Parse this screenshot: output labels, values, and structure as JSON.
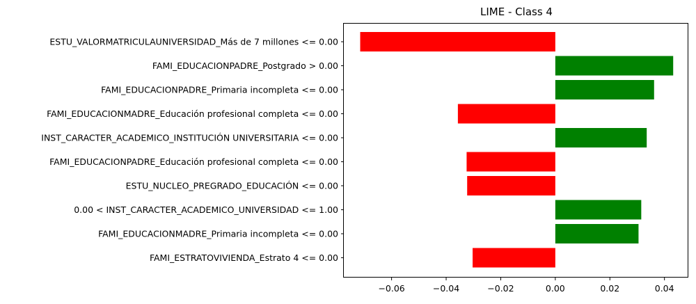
{
  "chart_data": {
    "type": "bar",
    "orientation": "horizontal",
    "title": "LIME - Class 4",
    "xlabel": "",
    "ylabel": "",
    "categories": [
      "ESTU_VALORMATRICULAUNIVERSIDAD_Más de 7 millones <= 0.00",
      "FAMI_EDUCACIONPADRE_Postgrado > 0.00",
      "FAMI_EDUCACIONPADRE_Primaria incompleta <= 0.00",
      "FAMI_EDUCACIONMADRE_Educación profesional completa <= 0.00",
      "INST_CARACTER_ACADEMICO_INSTITUCIÓN UNIVERSITARIA <= 0.00",
      "FAMI_EDUCACIONPADRE_Educación profesional completa <= 0.00",
      "ESTU_NUCLEO_PREGRADO_EDUCACIÓN <= 0.00",
      "0.00 < INST_CARACTER_ACADEMICO_UNIVERSIDAD <= 1.00",
      "FAMI_EDUCACIONMADRE_Primaria incompleta <= 0.00",
      "FAMI_ESTRATOVIVIENDA_Estrato 4 <= 0.00"
    ],
    "values": [
      -0.0715,
      0.0432,
      0.0362,
      -0.0357,
      0.0335,
      -0.0325,
      -0.0323,
      0.0315,
      0.0305,
      -0.0303
    ],
    "xlim": [
      -0.0775,
      0.0485
    ],
    "xticks": [
      -0.06,
      -0.04,
      -0.02,
      0.0,
      0.02,
      0.04
    ],
    "xtick_labels": [
      "−0.06",
      "−0.04",
      "−0.02",
      "0.00",
      "0.02",
      "0.04"
    ],
    "colors": {
      "positive": "#008000",
      "negative": "#ff0000",
      "axis": "#000000"
    },
    "grid": false,
    "legend": "none"
  }
}
